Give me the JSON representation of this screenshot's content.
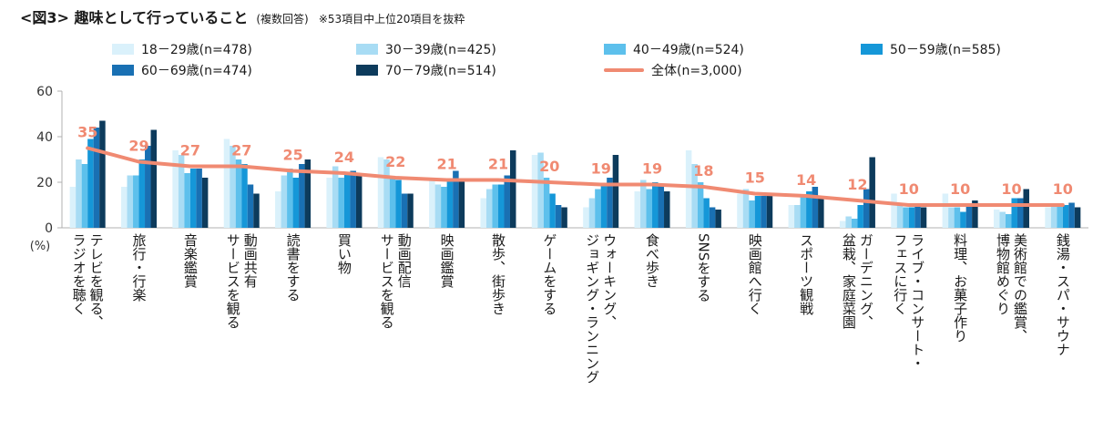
{
  "title": {
    "main": "<図3> 趣味として行っていること",
    "sub": "(複数回答)",
    "note": "※53項目中上位20項目を抜粋"
  },
  "colors": {
    "s18": "#daf1fb",
    "s30": "#a8dcf4",
    "s40": "#5dc0ec",
    "s50": "#1597d8",
    "s60": "#1970b3",
    "s70": "#0d3b5c",
    "total": "#f08a72"
  },
  "chart_data": {
    "type": "bar",
    "ylabel": "(%)",
    "ylim": [
      0,
      60
    ],
    "yticks": [
      0,
      20,
      40,
      60
    ],
    "grid": false,
    "legend_position": "top",
    "categories": [
      "テレビを観る、ラジオを聴く",
      "旅行・行楽",
      "音楽鑑賞",
      "動画共有サービスを観る",
      "読書をする",
      "買い物",
      "動画配信サービスを観る",
      "映画鑑賞",
      "散歩、街歩き",
      "ゲームをする",
      "ウォーキング、ジョギング・ランニング",
      "食べ歩き",
      "SNSをする",
      "映画館へ行く",
      "スポーツ観戦",
      "ガーデニング、盆栽、家庭菜園",
      "ライブ・コンサート・フェスに行く",
      "料理、お菓子作り",
      "美術館での鑑賞、博物館めぐり",
      "銭湯・スパ・サウナ"
    ],
    "category_lines": [
      [
        "テレビを観る、",
        "ラジオを聴く"
      ],
      [
        "旅行・行楽"
      ],
      [
        "音楽鑑賞"
      ],
      [
        "動画共有",
        "サービスを観る"
      ],
      [
        "読書をする"
      ],
      [
        "買い物"
      ],
      [
        "動画配信",
        "サービスを観る"
      ],
      [
        "映画鑑賞"
      ],
      [
        "散歩、街歩き"
      ],
      [
        "ゲームをする"
      ],
      [
        "ウォーキング、",
        "ジョギング・ランニング"
      ],
      [
        "食べ歩き"
      ],
      [
        "SNSをする"
      ],
      [
        "映画館へ行く"
      ],
      [
        "スポーツ観戦"
      ],
      [
        "ガーデニング、",
        "盆栽、家庭菜園"
      ],
      [
        "ライブ・コンサート・",
        "フェスに行く"
      ],
      [
        "料理、お菓子作り"
      ],
      [
        "美術館での鑑賞、",
        "博物館めぐり"
      ],
      [
        "銭湯・スパ・サウナ"
      ]
    ],
    "series": [
      {
        "name": "18－29歳(n=478)",
        "color": "#daf1fb",
        "values": [
          18,
          18,
          34,
          39,
          16,
          22,
          31,
          21,
          13,
          32,
          9,
          16,
          34,
          15,
          10,
          3,
          15,
          15,
          8,
          9
        ]
      },
      {
        "name": "30－39歳(n=425)",
        "color": "#a8dcf4",
        "values": [
          30,
          23,
          32,
          36,
          23,
          27,
          30,
          19,
          17,
          33,
          13,
          21,
          28,
          17,
          10,
          5,
          11,
          9,
          7,
          10
        ]
      },
      {
        "name": "40－49歳(n=524)",
        "color": "#5dc0ec",
        "values": [
          28,
          23,
          24,
          30,
          26,
          22,
          22,
          18,
          19,
          22,
          17,
          17,
          20,
          12,
          14,
          4,
          9,
          9,
          6,
          10
        ]
      },
      {
        "name": "50－59歳(n=585)",
        "color": "#1597d8",
        "values": [
          39,
          30,
          26,
          28,
          22,
          24,
          21,
          21,
          19,
          15,
          19,
          20,
          13,
          14,
          16,
          10,
          9,
          7,
          13,
          10
        ]
      },
      {
        "name": "60－69歳(n=474)",
        "color": "#1970b3",
        "values": [
          44,
          36,
          26,
          19,
          28,
          25,
          15,
          25,
          23,
          10,
          22,
          19,
          9,
          14,
          18,
          17,
          10,
          10,
          13,
          11
        ]
      },
      {
        "name": "70－79歳(n=514)",
        "color": "#0d3b5c",
        "values": [
          47,
          43,
          22,
          15,
          30,
          23,
          15,
          21,
          34,
          9,
          32,
          16,
          8,
          14,
          14,
          31,
          9,
          12,
          17,
          9
        ]
      },
      {
        "name": "全体(n=3,000)",
        "color": "#f08a72",
        "kind": "line",
        "values": [
          35,
          29,
          27,
          27,
          25,
          24,
          22,
          21,
          21,
          20,
          19,
          19,
          18,
          15,
          14,
          12,
          10,
          10,
          10,
          10
        ]
      }
    ]
  }
}
